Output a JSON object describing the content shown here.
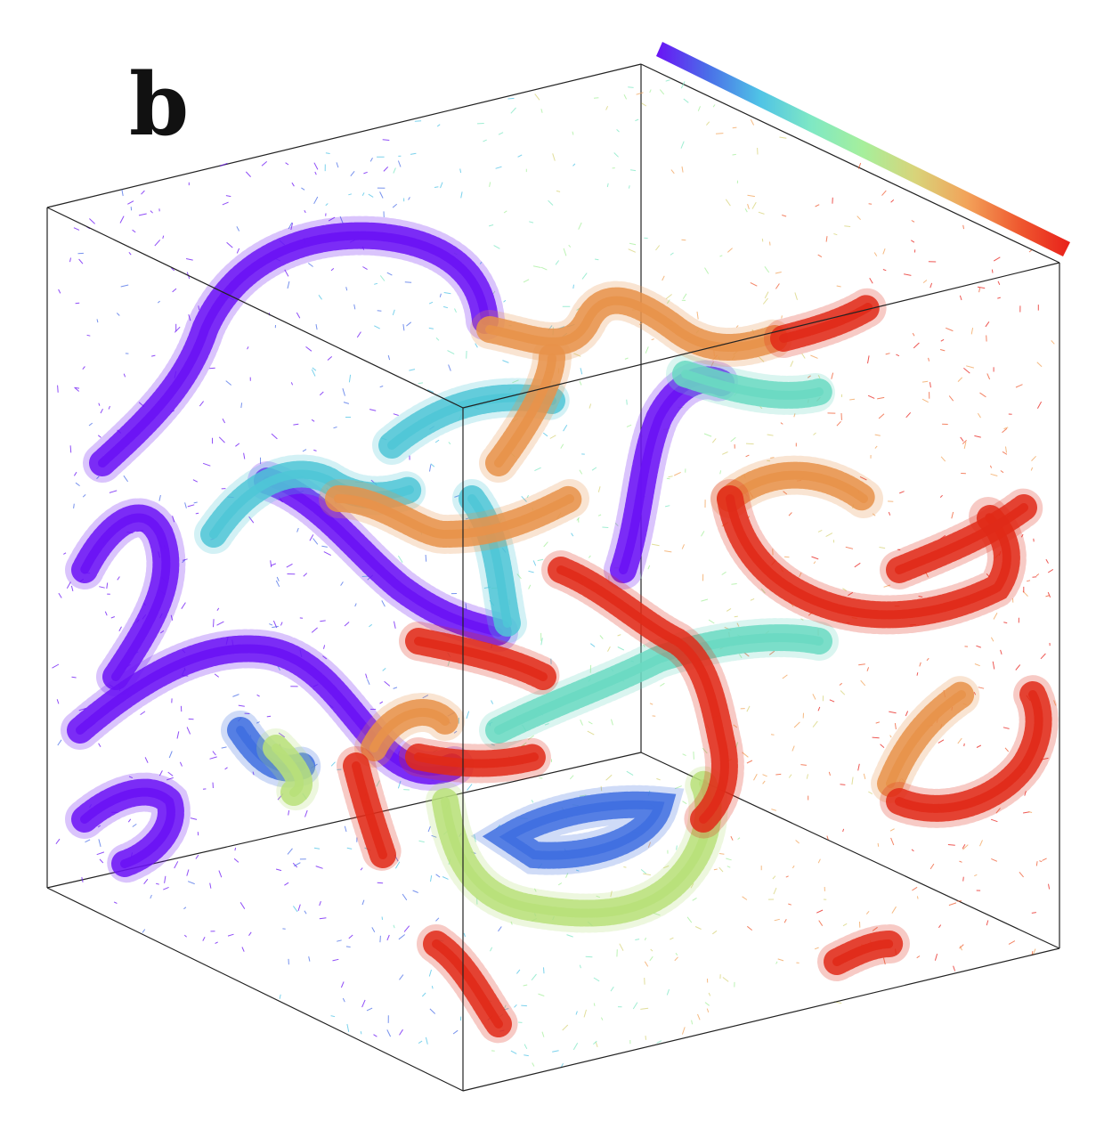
{
  "figure": {
    "panel_label": "b",
    "colorbar": {
      "stops": [
        "#6a12f5",
        "#4a6ee8",
        "#4fc3e6",
        "#7fe8c4",
        "#a6ef9c",
        "#d8d47a",
        "#f2a35a",
        "#ef5a30",
        "#e8201a"
      ]
    },
    "palette": {
      "violet": "#6a12f5",
      "blue": "#3f6fe0",
      "cyan": "#4fc6d6",
      "teal": "#6ad9c2",
      "green": "#b8e07a",
      "orange": "#e8924a",
      "red": "#e02a18",
      "edge": "#222222",
      "background": "#ffffff"
    },
    "icons": {
      "vector_glyph": "arrow-glyph",
      "scene": "3d-cube-volume"
    }
  }
}
